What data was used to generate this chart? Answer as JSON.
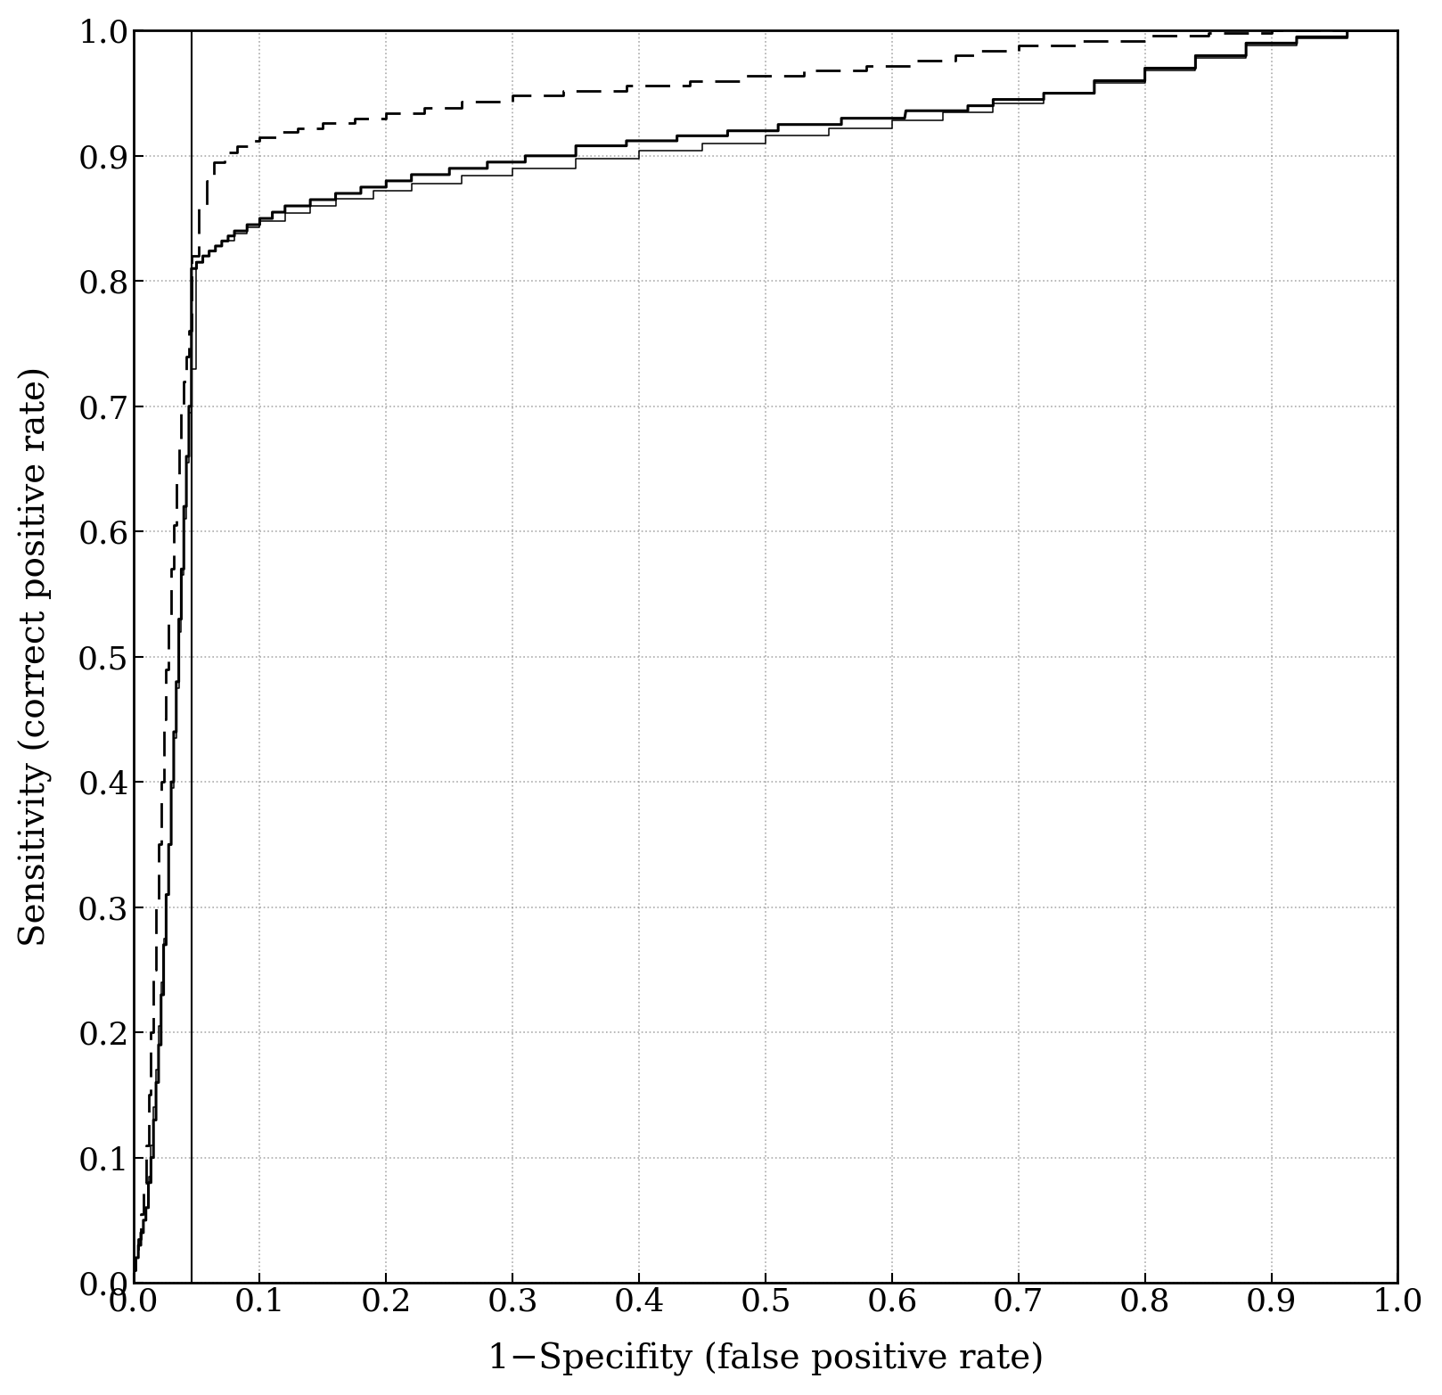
{
  "title": "",
  "xlabel": "1−Specifity (false positive rate)",
  "ylabel": "Sensitivity (correct positive rate)",
  "xlim": [
    0.0,
    1.0
  ],
  "ylim": [
    0.0,
    1.0
  ],
  "xticks": [
    0.0,
    0.1,
    0.2,
    0.3,
    0.4,
    0.5,
    0.6,
    0.7,
    0.8,
    0.9,
    1.0
  ],
  "yticks": [
    0.0,
    0.1,
    0.2,
    0.3,
    0.4,
    0.5,
    0.6,
    0.7,
    0.8,
    0.9,
    1.0
  ],
  "vline_x": 0.046,
  "background_color": "#ffffff",
  "grid_color": "#888888",
  "line_color": "#000000",
  "curve1_lw": 2.2,
  "curve2_lw": 1.1,
  "curve3_lw": 2.0,
  "curve1_solid": true,
  "curve2_solid": true,
  "curve3_dashed": true,
  "curve1_x": [
    0.0,
    0.0,
    0.002,
    0.002,
    0.004,
    0.004,
    0.006,
    0.006,
    0.008,
    0.008,
    0.01,
    0.01,
    0.012,
    0.012,
    0.014,
    0.014,
    0.016,
    0.016,
    0.018,
    0.018,
    0.02,
    0.02,
    0.022,
    0.022,
    0.024,
    0.024,
    0.026,
    0.026,
    0.028,
    0.028,
    0.03,
    0.03,
    0.032,
    0.032,
    0.034,
    0.034,
    0.036,
    0.036,
    0.038,
    0.038,
    0.04,
    0.04,
    0.042,
    0.042,
    0.044,
    0.044,
    0.046,
    0.046,
    0.05,
    0.05,
    0.055,
    0.055,
    0.06,
    0.06,
    0.065,
    0.065,
    0.07,
    0.07,
    0.075,
    0.075,
    0.08,
    0.08,
    0.09,
    0.09,
    0.1,
    0.1,
    0.11,
    0.11,
    0.12,
    0.12,
    0.14,
    0.14,
    0.16,
    0.16,
    0.18,
    0.18,
    0.2,
    0.2,
    0.22,
    0.22,
    0.25,
    0.25,
    0.28,
    0.28,
    0.31,
    0.31,
    0.35,
    0.35,
    0.39,
    0.39,
    0.43,
    0.43,
    0.47,
    0.47,
    0.51,
    0.51,
    0.56,
    0.56,
    0.61,
    0.611,
    0.66,
    0.66,
    0.68,
    0.68,
    0.72,
    0.72,
    0.76,
    0.76,
    0.8,
    0.8,
    0.84,
    0.84,
    0.88,
    0.88,
    0.92,
    0.92,
    0.96,
    0.96,
    1.0
  ],
  "curve1_y": [
    0.0,
    0.01,
    0.01,
    0.02,
    0.02,
    0.03,
    0.03,
    0.04,
    0.04,
    0.05,
    0.05,
    0.06,
    0.06,
    0.08,
    0.08,
    0.1,
    0.1,
    0.13,
    0.13,
    0.16,
    0.16,
    0.19,
    0.19,
    0.23,
    0.23,
    0.27,
    0.27,
    0.31,
    0.31,
    0.35,
    0.35,
    0.4,
    0.4,
    0.44,
    0.44,
    0.48,
    0.48,
    0.53,
    0.53,
    0.57,
    0.57,
    0.62,
    0.62,
    0.66,
    0.66,
    0.7,
    0.7,
    0.81,
    0.81,
    0.815,
    0.815,
    0.82,
    0.82,
    0.824,
    0.824,
    0.828,
    0.828,
    0.832,
    0.832,
    0.836,
    0.836,
    0.84,
    0.84,
    0.845,
    0.845,
    0.85,
    0.85,
    0.855,
    0.855,
    0.86,
    0.86,
    0.865,
    0.865,
    0.87,
    0.87,
    0.875,
    0.875,
    0.88,
    0.88,
    0.885,
    0.885,
    0.89,
    0.89,
    0.895,
    0.895,
    0.9,
    0.9,
    0.908,
    0.908,
    0.912,
    0.912,
    0.916,
    0.916,
    0.92,
    0.92,
    0.925,
    0.925,
    0.93,
    0.93,
    0.936,
    0.936,
    0.94,
    0.94,
    0.945,
    0.945,
    0.95,
    0.95,
    0.96,
    0.96,
    0.97,
    0.97,
    0.98,
    0.98,
    0.99,
    0.99,
    0.995,
    0.995,
    1.0,
    1.0
  ],
  "curve2_x": [
    0.0,
    0.0,
    0.002,
    0.002,
    0.004,
    0.004,
    0.006,
    0.006,
    0.008,
    0.008,
    0.01,
    0.01,
    0.012,
    0.012,
    0.014,
    0.014,
    0.016,
    0.016,
    0.018,
    0.018,
    0.02,
    0.02,
    0.022,
    0.022,
    0.024,
    0.024,
    0.026,
    0.026,
    0.028,
    0.028,
    0.03,
    0.03,
    0.032,
    0.032,
    0.034,
    0.034,
    0.036,
    0.036,
    0.038,
    0.038,
    0.04,
    0.04,
    0.042,
    0.042,
    0.044,
    0.044,
    0.046,
    0.046,
    0.05,
    0.05,
    0.055,
    0.055,
    0.06,
    0.06,
    0.065,
    0.065,
    0.07,
    0.07,
    0.08,
    0.08,
    0.09,
    0.09,
    0.1,
    0.1,
    0.12,
    0.12,
    0.14,
    0.14,
    0.16,
    0.16,
    0.19,
    0.19,
    0.22,
    0.22,
    0.26,
    0.26,
    0.3,
    0.3,
    0.35,
    0.35,
    0.4,
    0.4,
    0.45,
    0.45,
    0.5,
    0.5,
    0.55,
    0.55,
    0.6,
    0.6,
    0.64,
    0.64,
    0.68,
    0.68,
    0.72,
    0.72,
    0.76,
    0.76,
    0.8,
    0.8,
    0.84,
    0.84,
    0.88,
    0.88,
    0.92,
    0.92,
    0.96,
    0.96,
    1.0
  ],
  "curve2_y": [
    0.0,
    0.01,
    0.01,
    0.02,
    0.02,
    0.03,
    0.03,
    0.04,
    0.04,
    0.05,
    0.05,
    0.06,
    0.06,
    0.085,
    0.085,
    0.11,
    0.11,
    0.14,
    0.14,
    0.17,
    0.17,
    0.205,
    0.205,
    0.24,
    0.24,
    0.275,
    0.275,
    0.31,
    0.31,
    0.35,
    0.35,
    0.395,
    0.395,
    0.435,
    0.435,
    0.475,
    0.475,
    0.52,
    0.52,
    0.565,
    0.565,
    0.61,
    0.61,
    0.655,
    0.655,
    0.695,
    0.695,
    0.73,
    0.73,
    0.815,
    0.815,
    0.82,
    0.82,
    0.824,
    0.824,
    0.828,
    0.828,
    0.832,
    0.832,
    0.838,
    0.838,
    0.843,
    0.843,
    0.848,
    0.848,
    0.854,
    0.854,
    0.86,
    0.86,
    0.866,
    0.866,
    0.872,
    0.872,
    0.878,
    0.878,
    0.884,
    0.884,
    0.89,
    0.89,
    0.898,
    0.898,
    0.904,
    0.904,
    0.91,
    0.91,
    0.916,
    0.916,
    0.922,
    0.922,
    0.928,
    0.928,
    0.935,
    0.935,
    0.942,
    0.942,
    0.95,
    0.95,
    0.958,
    0.958,
    0.968,
    0.968,
    0.978,
    0.978,
    0.988,
    0.988,
    0.994,
    0.994,
    1.0,
    1.0
  ],
  "curve3_x": [
    0.0,
    0.0,
    0.002,
    0.002,
    0.004,
    0.004,
    0.006,
    0.006,
    0.008,
    0.008,
    0.01,
    0.01,
    0.012,
    0.012,
    0.014,
    0.014,
    0.016,
    0.016,
    0.018,
    0.018,
    0.02,
    0.02,
    0.022,
    0.022,
    0.024,
    0.024,
    0.026,
    0.026,
    0.028,
    0.028,
    0.03,
    0.03,
    0.032,
    0.032,
    0.034,
    0.034,
    0.036,
    0.036,
    0.038,
    0.038,
    0.04,
    0.04,
    0.042,
    0.042,
    0.044,
    0.044,
    0.046,
    0.046,
    0.052,
    0.052,
    0.058,
    0.058,
    0.064,
    0.064,
    0.072,
    0.072,
    0.082,
    0.082,
    0.092,
    0.092,
    0.1,
    0.1,
    0.115,
    0.115,
    0.13,
    0.13,
    0.15,
    0.15,
    0.175,
    0.175,
    0.2,
    0.2,
    0.23,
    0.23,
    0.26,
    0.26,
    0.3,
    0.3,
    0.34,
    0.34,
    0.39,
    0.39,
    0.44,
    0.44,
    0.48,
    0.48,
    0.53,
    0.53,
    0.58,
    0.58,
    0.62,
    0.62,
    0.65,
    0.65,
    0.67,
    0.67,
    0.7,
    0.7,
    0.75,
    0.75,
    0.8,
    0.8,
    0.85,
    0.85,
    0.9,
    0.9,
    0.94,
    0.94,
    0.97,
    0.97,
    1.0
  ],
  "curve3_y": [
    0.0,
    0.01,
    0.01,
    0.02,
    0.02,
    0.035,
    0.035,
    0.055,
    0.055,
    0.08,
    0.08,
    0.11,
    0.11,
    0.15,
    0.15,
    0.2,
    0.2,
    0.25,
    0.25,
    0.3,
    0.3,
    0.35,
    0.35,
    0.4,
    0.4,
    0.45,
    0.45,
    0.49,
    0.49,
    0.53,
    0.53,
    0.57,
    0.57,
    0.605,
    0.605,
    0.64,
    0.64,
    0.67,
    0.67,
    0.7,
    0.7,
    0.72,
    0.72,
    0.74,
    0.74,
    0.76,
    0.76,
    0.82,
    0.82,
    0.86,
    0.86,
    0.88,
    0.88,
    0.895,
    0.895,
    0.903,
    0.903,
    0.908,
    0.908,
    0.912,
    0.912,
    0.915,
    0.915,
    0.919,
    0.919,
    0.922,
    0.922,
    0.926,
    0.926,
    0.93,
    0.93,
    0.934,
    0.934,
    0.938,
    0.938,
    0.943,
    0.943,
    0.948,
    0.948,
    0.952,
    0.952,
    0.956,
    0.956,
    0.96,
    0.96,
    0.964,
    0.964,
    0.968,
    0.968,
    0.972,
    0.972,
    0.976,
    0.976,
    0.98,
    0.98,
    0.984,
    0.984,
    0.988,
    0.988,
    0.992,
    0.992,
    0.996,
    0.996,
    0.998,
    0.998,
    1.0,
    1.0,
    1.0,
    1.0,
    1.0,
    1.0
  ],
  "font_size_ticks": 26,
  "font_size_labels": 28,
  "vline_lw": 1.5,
  "dashes_on": 10,
  "dashes_off": 5
}
